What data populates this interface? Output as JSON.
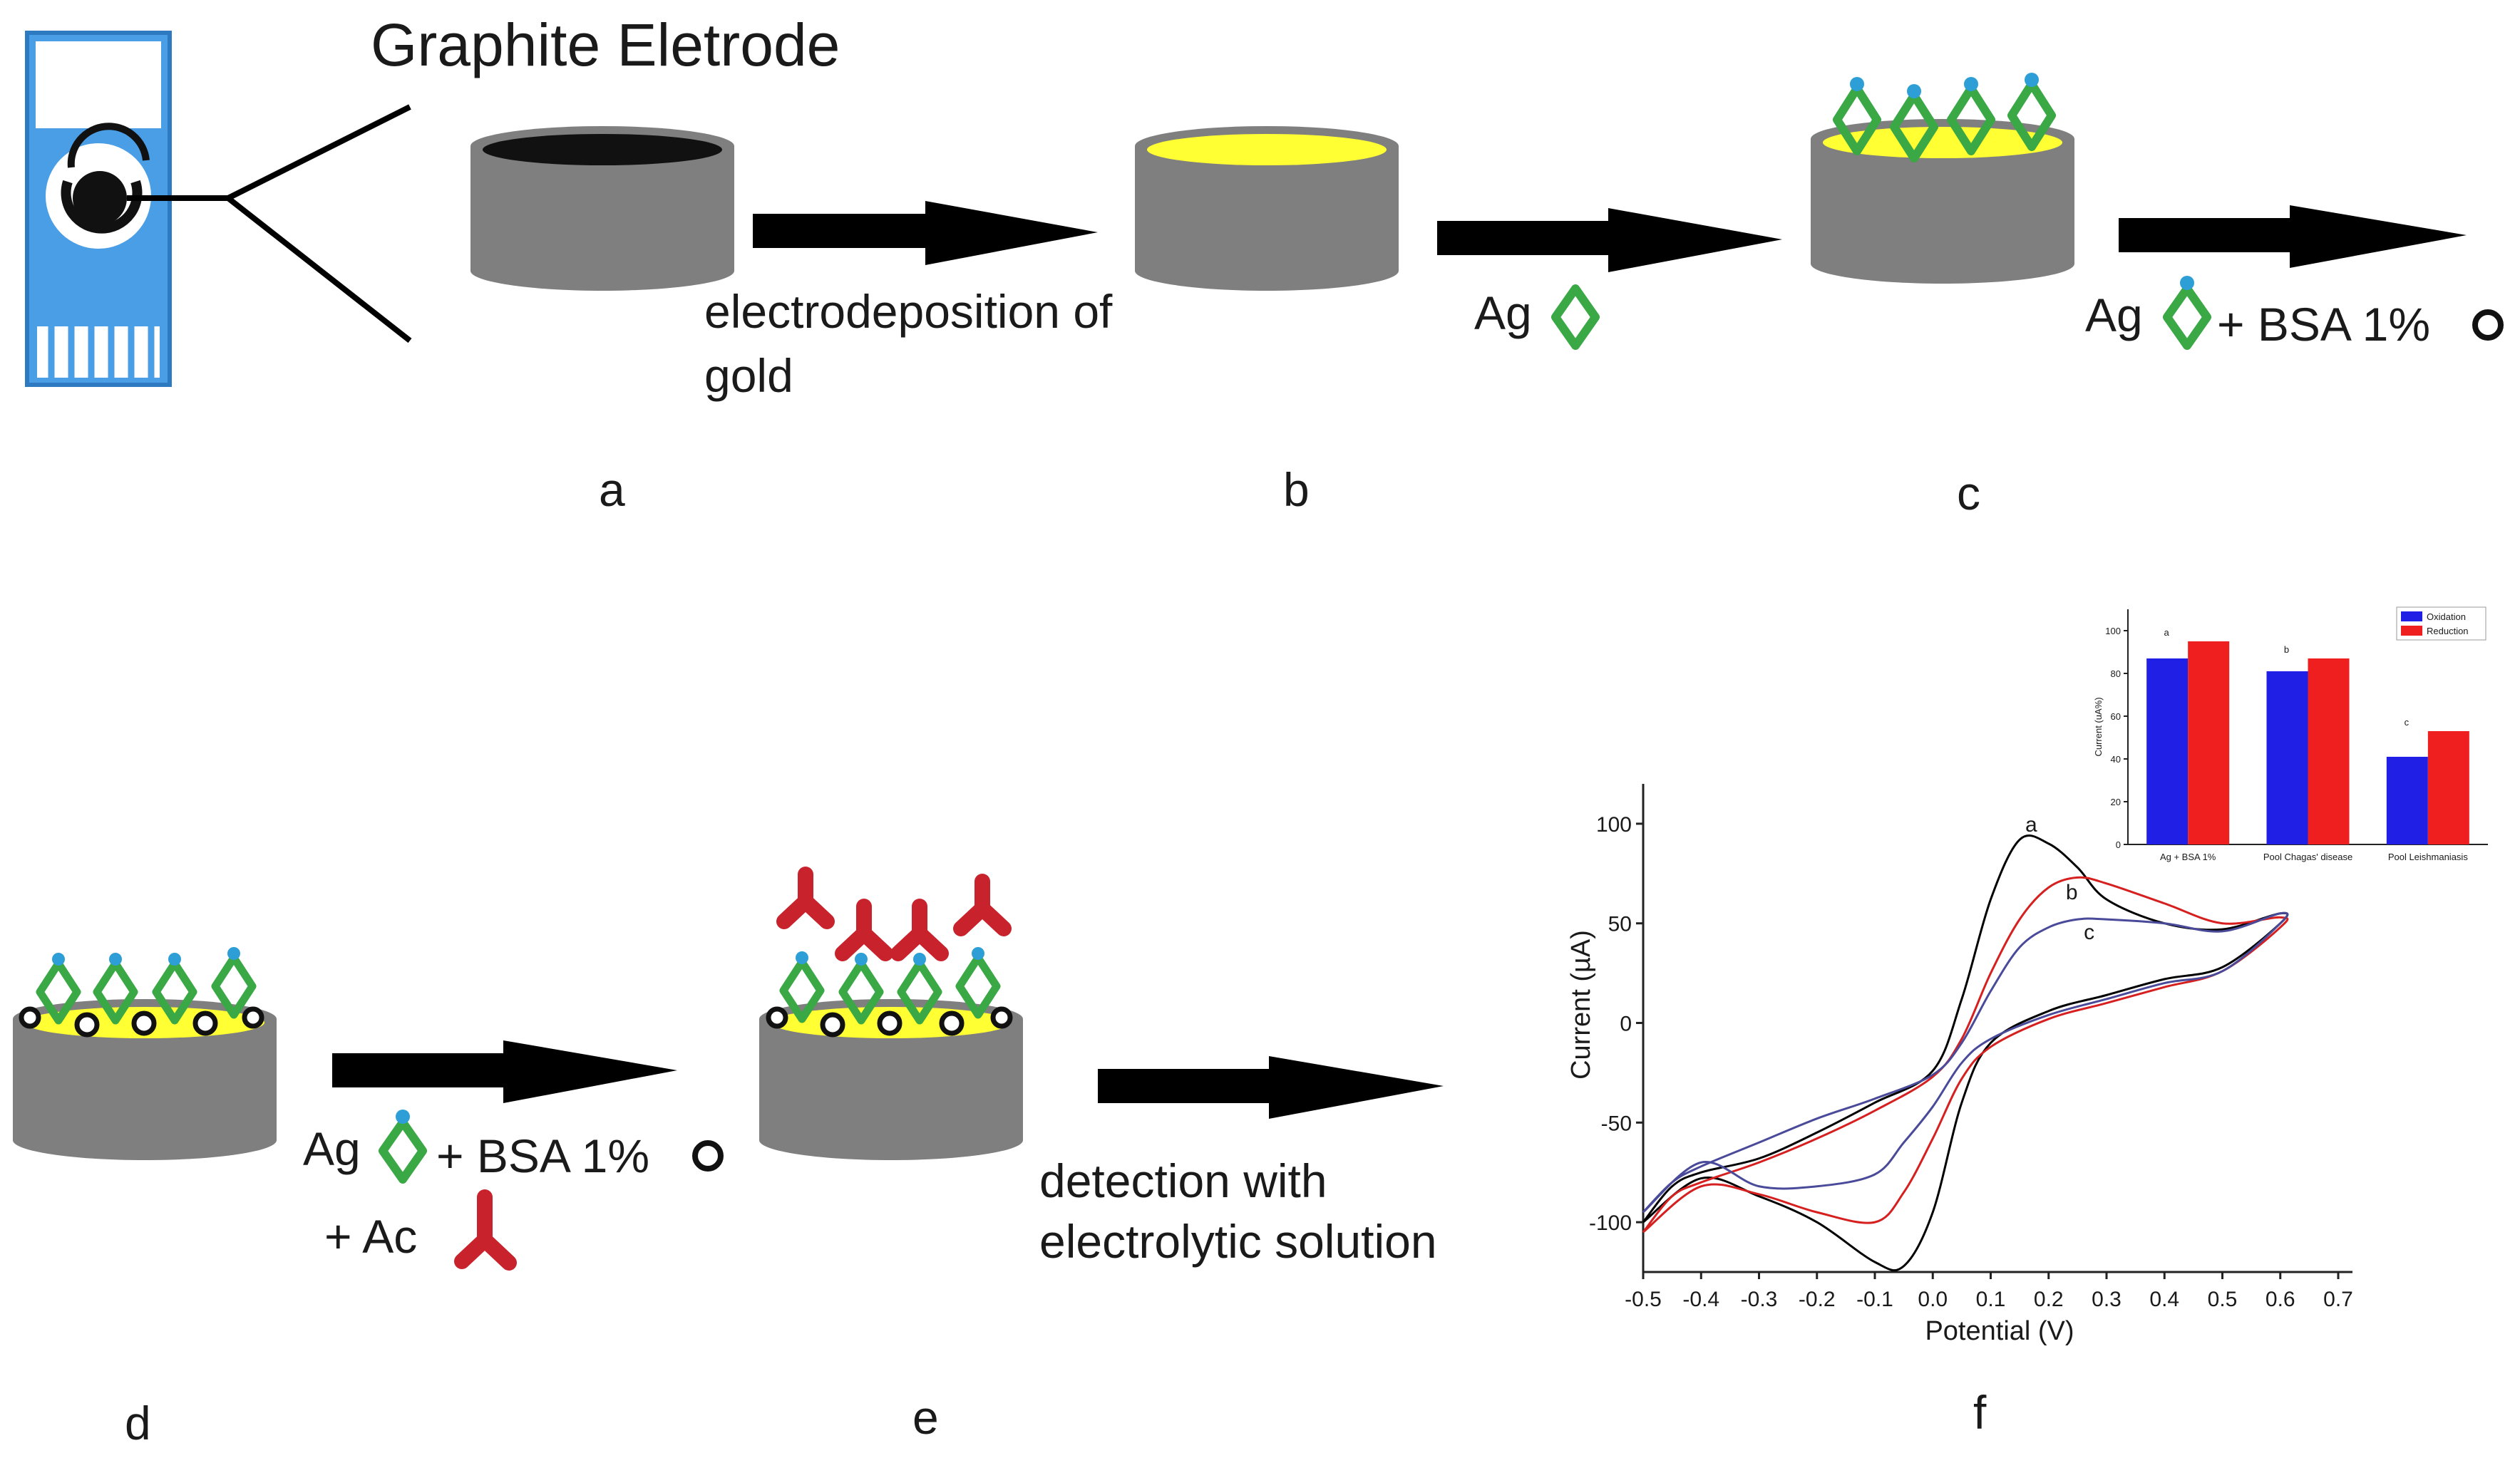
{
  "title": "Graphite Eletrode",
  "steps": {
    "a_to_b": [
      "electrodeposition of",
      "gold"
    ],
    "b_to_c": "Ag",
    "c_to_d": {
      "ag": "Ag",
      "bsa": "+ BSA 1%"
    },
    "d_to_e": {
      "ag": "Ag",
      "bsa": "+ BSA 1%",
      "ac": "+ Ac"
    },
    "e_to_f": [
      "detection with",
      "electrolytic solution"
    ]
  },
  "panel_labels": {
    "a": "a",
    "b": "b",
    "c": "c",
    "d": "d",
    "e": "e",
    "f": "f"
  },
  "colors": {
    "electrode_body": "#7f7f7f",
    "electrode_top": "#111111",
    "gold": "#ffff33",
    "antigen": "#39a845",
    "antigen_tip": "#2e9fd6",
    "antibody": "#c8232c",
    "chip": "#4a9ee6",
    "arrow": "#000000"
  },
  "chart_data": [
    {
      "type": "line",
      "title": "",
      "xlabel": "Potential (V)",
      "ylabel": "Current (µA)",
      "xlim": [
        -0.5,
        0.7
      ],
      "ylim": [
        -125,
        120
      ],
      "xticks": [
        -0.5,
        -0.4,
        -0.3,
        -0.2,
        -0.1,
        0.0,
        0.1,
        0.2,
        0.3,
        0.4,
        0.5,
        0.6,
        0.7
      ],
      "xtick_labels": [
        "-0.5",
        "-0.4",
        "-0.3",
        "-0.2",
        "-0.1",
        "0.0",
        "0.1",
        "0.2",
        "0.3",
        "0.4",
        "0.5",
        "0.6",
        "0.7"
      ],
      "yticks": [
        100,
        50,
        0,
        -50,
        -100
      ],
      "ytick_labels": [
        "100",
        "50",
        "0",
        "-50",
        "-100"
      ],
      "series": [
        {
          "name": "a",
          "color": "#000000",
          "x": [
            -0.5,
            -0.45,
            -0.4,
            -0.3,
            -0.2,
            -0.1,
            0.0,
            0.05,
            0.1,
            0.15,
            0.2,
            0.25,
            0.3,
            0.4,
            0.5,
            0.6,
            0.6,
            0.5,
            0.4,
            0.3,
            0.2,
            0.1,
            0.05,
            0.0,
            -0.05,
            -0.1,
            -0.2,
            -0.3,
            -0.4,
            -0.5
          ],
          "y": [
            -100,
            -82,
            -75,
            -68,
            -55,
            -40,
            -24,
            12,
            62,
            92,
            90,
            78,
            62,
            50,
            47,
            55,
            50,
            28,
            22,
            14,
            6,
            -10,
            -40,
            -95,
            -122,
            -120,
            -100,
            -87,
            -78,
            -100
          ]
        },
        {
          "name": "b",
          "color": "#d62020",
          "x": [
            -0.5,
            -0.45,
            -0.4,
            -0.3,
            -0.2,
            -0.1,
            0.0,
            0.05,
            0.1,
            0.15,
            0.2,
            0.25,
            0.3,
            0.4,
            0.5,
            0.6,
            0.6,
            0.5,
            0.4,
            0.3,
            0.2,
            0.1,
            0.05,
            0.0,
            -0.05,
            -0.1,
            -0.2,
            -0.3,
            -0.4,
            -0.5
          ],
          "y": [
            -105,
            -87,
            -80,
            -70,
            -58,
            -44,
            -27,
            -8,
            25,
            52,
            68,
            73,
            70,
            60,
            50,
            53,
            48,
            26,
            18,
            10,
            2,
            -12,
            -28,
            -58,
            -85,
            -100,
            -95,
            -86,
            -82,
            -105
          ]
        },
        {
          "name": "c",
          "color": "#4a4a9a",
          "x": [
            -0.5,
            -0.45,
            -0.4,
            -0.3,
            -0.2,
            -0.1,
            0.0,
            0.05,
            0.1,
            0.15,
            0.2,
            0.25,
            0.3,
            0.4,
            0.5,
            0.6,
            0.6,
            0.5,
            0.4,
            0.3,
            0.2,
            0.1,
            0.05,
            0.0,
            -0.05,
            -0.1,
            -0.2,
            -0.3,
            -0.4,
            -0.5
          ],
          "y": [
            -95,
            -80,
            -72,
            -60,
            -48,
            -38,
            -26,
            -10,
            16,
            38,
            48,
            52,
            52,
            50,
            46,
            55,
            50,
            26,
            20,
            12,
            4,
            -8,
            -20,
            -42,
            -60,
            -76,
            -82,
            -82,
            -70,
            -95
          ]
        }
      ],
      "annotations": [
        "a",
        "b",
        "c"
      ]
    },
    {
      "type": "bar",
      "title": "",
      "xlabel": "",
      "ylabel": "Current (uA%)",
      "ylim": [
        0,
        110
      ],
      "yticks": [
        0,
        20,
        40,
        60,
        80,
        100
      ],
      "ytick_labels": [
        "0",
        "20",
        "40",
        "60",
        "80",
        "100"
      ],
      "categories": [
        "Ag + BSA 1%",
        "Pool Chagas' disease",
        "Pool Leishmaniasis"
      ],
      "series": [
        {
          "name": "Oxidation",
          "color": "#1f1fe6",
          "values": [
            87,
            81,
            41
          ]
        },
        {
          "name": "Reduction",
          "color": "#f01f1f",
          "values": [
            95,
            87,
            53
          ]
        }
      ],
      "annotations": [
        "a",
        "b",
        "c"
      ],
      "legend": "top-right"
    }
  ]
}
